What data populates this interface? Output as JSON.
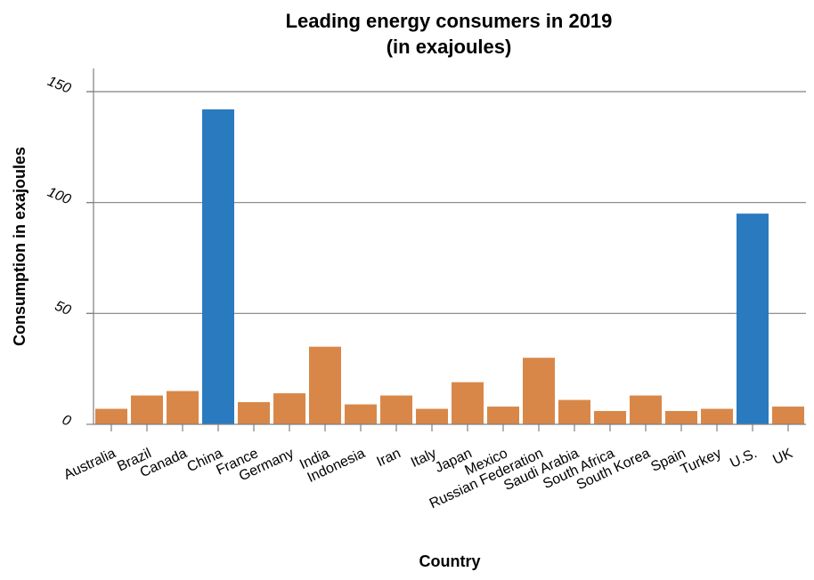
{
  "chart_data": {
    "type": "bar",
    "title_line1": "Leading energy consumers in 2019",
    "title_line2": "(in exajoules)",
    "xlabel": "Country",
    "ylabel": "Consumption in exajoules",
    "ylim": [
      0,
      150
    ],
    "yticks": [
      0,
      50,
      100,
      150
    ],
    "grid": "horizontal",
    "categories": [
      "Australia",
      "Brazil",
      "Canada",
      "China",
      "France",
      "Germany",
      "India",
      "Indonesia",
      "Iran",
      "Italy",
      "Japan",
      "Mexico",
      "Russian Federation",
      "Saudi Arabia",
      "South Africa",
      "South Korea",
      "Spain",
      "Turkey",
      "U.S.",
      "UK"
    ],
    "values": [
      7,
      13,
      15,
      142,
      10,
      14,
      35,
      9,
      13,
      7,
      19,
      8,
      30,
      11,
      6,
      13,
      6,
      7,
      95,
      8
    ],
    "colors": [
      "#d98748",
      "#d98748",
      "#d98748",
      "#2a7abf",
      "#d98748",
      "#d98748",
      "#d98748",
      "#d98748",
      "#d98748",
      "#d98748",
      "#d98748",
      "#d98748",
      "#d98748",
      "#d98748",
      "#d98748",
      "#d98748",
      "#d98748",
      "#d98748",
      "#2a7abf",
      "#d98748"
    ],
    "gridline_color": "#808080",
    "axis_color": "#808080"
  }
}
